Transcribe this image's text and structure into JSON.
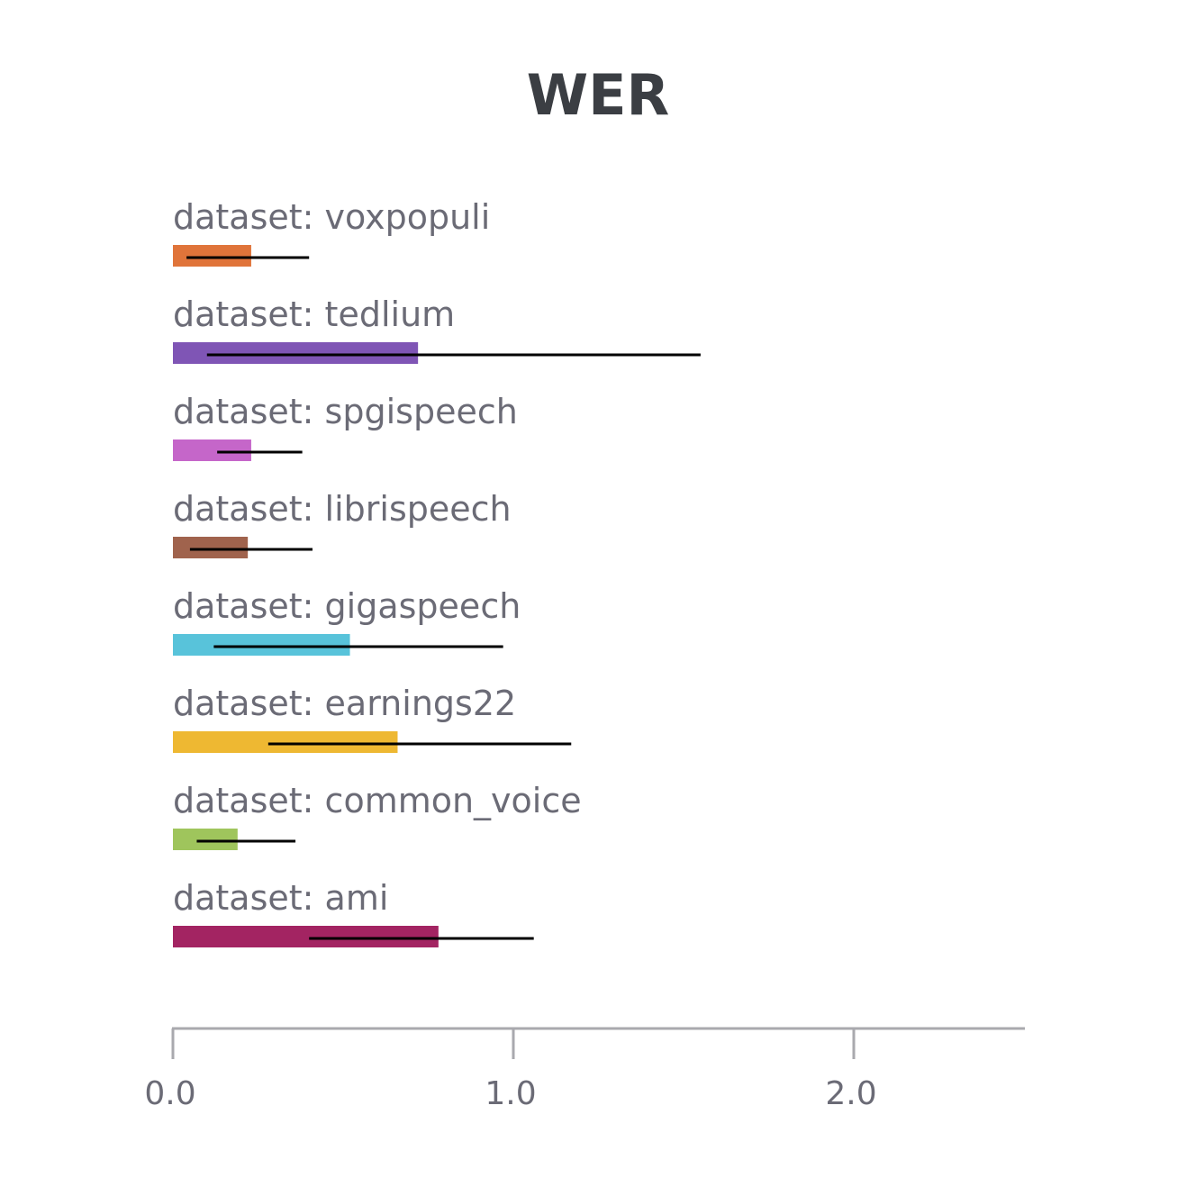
{
  "chart_data": {
    "type": "bar",
    "orientation": "horizontal",
    "title": "WER",
    "xlim": [
      0,
      2.5
    ],
    "ticks": [
      {
        "value": 0,
        "label": "0.0"
      },
      {
        "value": 1,
        "label": "1.0"
      },
      {
        "value": 2,
        "label": "2.0"
      }
    ],
    "grid": false,
    "legend": "none",
    "bars": [
      {
        "label": "dataset: voxpopuli",
        "value": 0.23,
        "err_low": 0.04,
        "err_high": 0.4,
        "color": "#e0743a"
      },
      {
        "label": "dataset: tedlium",
        "value": 0.72,
        "err_low": 0.1,
        "err_high": 1.55,
        "color": "#7f55b5"
      },
      {
        "label": "dataset: spgispeech",
        "value": 0.23,
        "err_low": 0.13,
        "err_high": 0.38,
        "color": "#c566c9"
      },
      {
        "label": "dataset: librispeech",
        "value": 0.22,
        "err_low": 0.05,
        "err_high": 0.41,
        "color": "#a0634d"
      },
      {
        "label": "dataset: gigaspeech",
        "value": 0.52,
        "err_low": 0.12,
        "err_high": 0.97,
        "color": "#58c3da"
      },
      {
        "label": "dataset: earnings22",
        "value": 0.66,
        "err_low": 0.28,
        "err_high": 1.17,
        "color": "#eeb832"
      },
      {
        "label": "dataset: common_voice",
        "value": 0.19,
        "err_low": 0.07,
        "err_high": 0.36,
        "color": "#9fc55c"
      },
      {
        "label": "dataset: ami",
        "value": 0.78,
        "err_low": 0.4,
        "err_high": 1.06,
        "color": "#a32462"
      }
    ]
  }
}
